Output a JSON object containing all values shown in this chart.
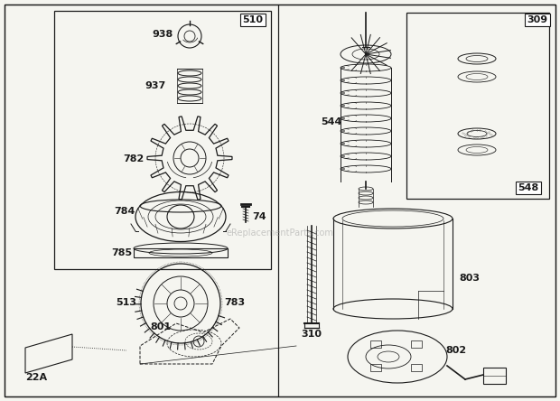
{
  "bg_color": "#f5f5f0",
  "line_color": "#1a1a1a",
  "watermark": "eReplacementParts.com",
  "figsize": [
    6.2,
    4.44
  ],
  "dpi": 100
}
